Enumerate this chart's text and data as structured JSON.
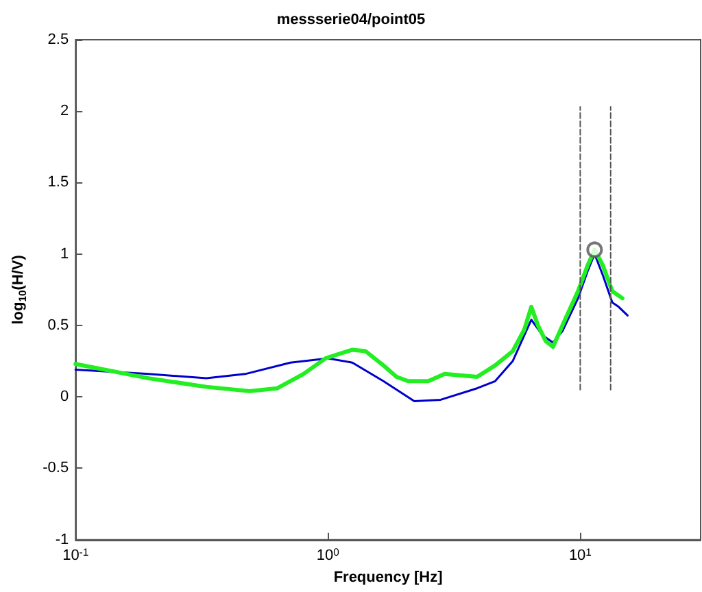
{
  "chart_data": {
    "type": "line",
    "title": "messserie04/point05",
    "xlabel": "Frequency [Hz]",
    "ylabel": "log$_{10}$(H/V)",
    "log": "x",
    "grid": false,
    "xlim": [
      0.1,
      30
    ],
    "xticks": [
      {
        "value": 0.1,
        "label": "10$^{-1}$"
      },
      {
        "value": 1,
        "label": "10$^{0}$"
      },
      {
        "value": 10,
        "label": "10$^{1}$"
      }
    ],
    "ylim": [
      -1,
      2.5
    ],
    "yticks": [
      -1,
      -0.5,
      0,
      0.5,
      1,
      1.5,
      2,
      2.5
    ],
    "series": [
      {
        "color": "#0000cc",
        "marker": "none",
        "x": [
          0.1,
          0.195,
          0.33,
          0.47,
          0.71,
          1.0,
          1.25,
          1.66,
          2.2,
          2.8,
          3.9,
          4.6,
          5.4,
          6.4,
          7.1,
          7.8,
          8.5,
          9.8,
          10.7,
          11.4,
          12.3,
          13.4,
          14.2,
          15.4
        ],
        "values": [
          0.19,
          0.16,
          0.13,
          0.16,
          0.24,
          0.27,
          0.24,
          0.11,
          -0.03,
          -0.02,
          0.06,
          0.11,
          0.25,
          0.54,
          0.43,
          0.38,
          0.46,
          0.69,
          0.88,
          1.0,
          0.85,
          0.66,
          0.63,
          0.57
        ]
      },
      {
        "color": "#22ee22",
        "marker": "none",
        "x": [
          0.1,
          0.195,
          0.33,
          0.49,
          0.63,
          0.8,
          0.98,
          1.25,
          1.41,
          1.66,
          1.87,
          2.08,
          2.5,
          2.9,
          3.9,
          4.6,
          5.4,
          6.0,
          6.4,
          6.8,
          7.3,
          7.8,
          8.7,
          9.8,
          10.7,
          11.4,
          12.3,
          13.4,
          14.7
        ],
        "values": [
          0.23,
          0.13,
          0.07,
          0.04,
          0.06,
          0.16,
          0.27,
          0.33,
          0.32,
          0.22,
          0.14,
          0.11,
          0.11,
          0.16,
          0.14,
          0.22,
          0.32,
          0.47,
          0.63,
          0.5,
          0.39,
          0.35,
          0.54,
          0.74,
          0.92,
          1.03,
          0.92,
          0.74,
          0.69
        ]
      },
      {
        "color": "#555555",
        "marker": "none",
        "line_style": "dashed",
        "x": [
          10,
          10
        ],
        "values": [
          0.05,
          2.03
        ]
      },
      {
        "color": "#555555",
        "marker": "none",
        "line_style": "dashed",
        "x": [
          13.2,
          13.2
        ],
        "values": [
          0.05,
          2.03
        ]
      },
      {
        "type": "scatter",
        "color": "#555555",
        "marker": "circle",
        "x": [
          11.4
        ],
        "values": [
          1.03
        ]
      }
    ]
  }
}
